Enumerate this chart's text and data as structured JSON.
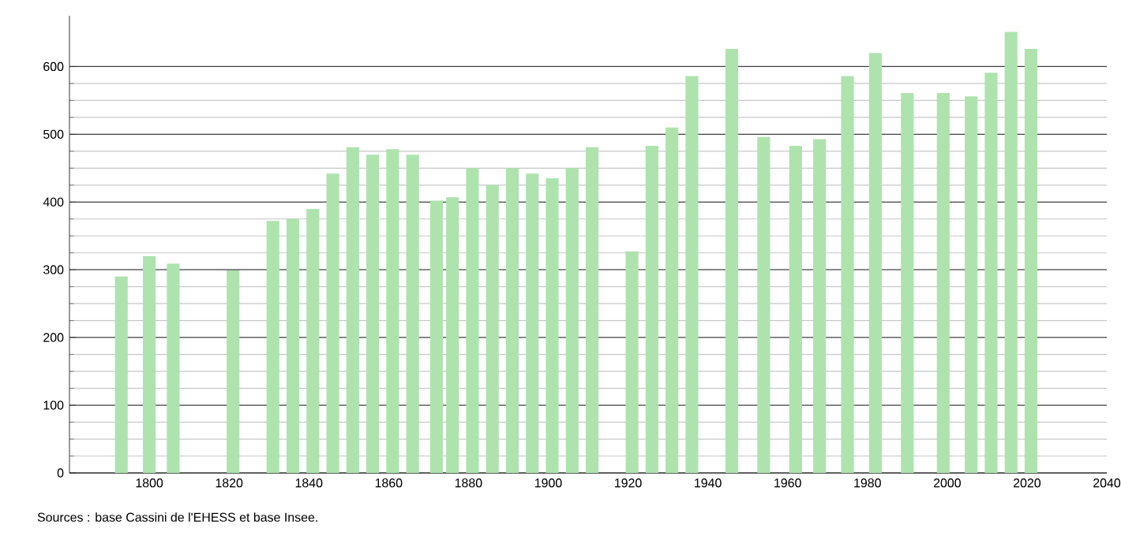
{
  "chart_data": {
    "type": "bar",
    "x": [
      1793,
      1800,
      1806,
      1821,
      1831,
      1836,
      1841,
      1846,
      1851,
      1856,
      1861,
      1866,
      1872,
      1876,
      1881,
      1886,
      1891,
      1896,
      1901,
      1906,
      1911,
      1921,
      1926,
      1931,
      1936,
      1946,
      1954,
      1962,
      1968,
      1975,
      1982,
      1990,
      1999,
      2006,
      2011,
      2016,
      2021
    ],
    "values": [
      290,
      320,
      309,
      299,
      372,
      375,
      390,
      442,
      481,
      470,
      478,
      470,
      402,
      407,
      450,
      425,
      450,
      442,
      435,
      450,
      481,
      327,
      483,
      510,
      586,
      626,
      496,
      483,
      493,
      586,
      620,
      561,
      561,
      556,
      591,
      651,
      626
    ],
    "color": "#aee3ae",
    "xlim": [
      1780,
      2040
    ],
    "xticks": [
      1800,
      1820,
      1840,
      1860,
      1880,
      1900,
      1920,
      1940,
      1960,
      1980,
      2000,
      2020,
      2040
    ],
    "ylim": [
      0,
      675
    ],
    "yticks": [
      0,
      100,
      200,
      300,
      400,
      500,
      600
    ],
    "grid": "y",
    "annotations": [
      "Sources : base Cassini de l'EHESS et base Insee."
    ]
  }
}
